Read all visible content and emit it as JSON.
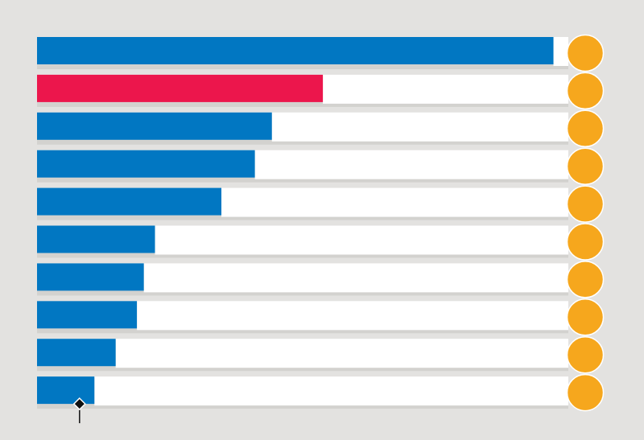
{
  "chart_data": {
    "type": "bar",
    "orientation": "horizontal",
    "title": "",
    "xlabel": "",
    "ylabel": "",
    "xlim": [
      0,
      100
    ],
    "grid": false,
    "legend": "none",
    "values": [
      97.2,
      53.8,
      44.2,
      41.0,
      34.7,
      22.2,
      20.1,
      18.8,
      14.8,
      10.8
    ],
    "highlight_index": 1,
    "marker_value": 8
  },
  "colors": {
    "background": "#e3e2e0",
    "track": "#ffffff",
    "track_shadow": "#d3d2cf",
    "bar": "#0177c2",
    "bar_highlight": "#ec164c",
    "dot": "#f6a71d",
    "marker": "#111111"
  }
}
